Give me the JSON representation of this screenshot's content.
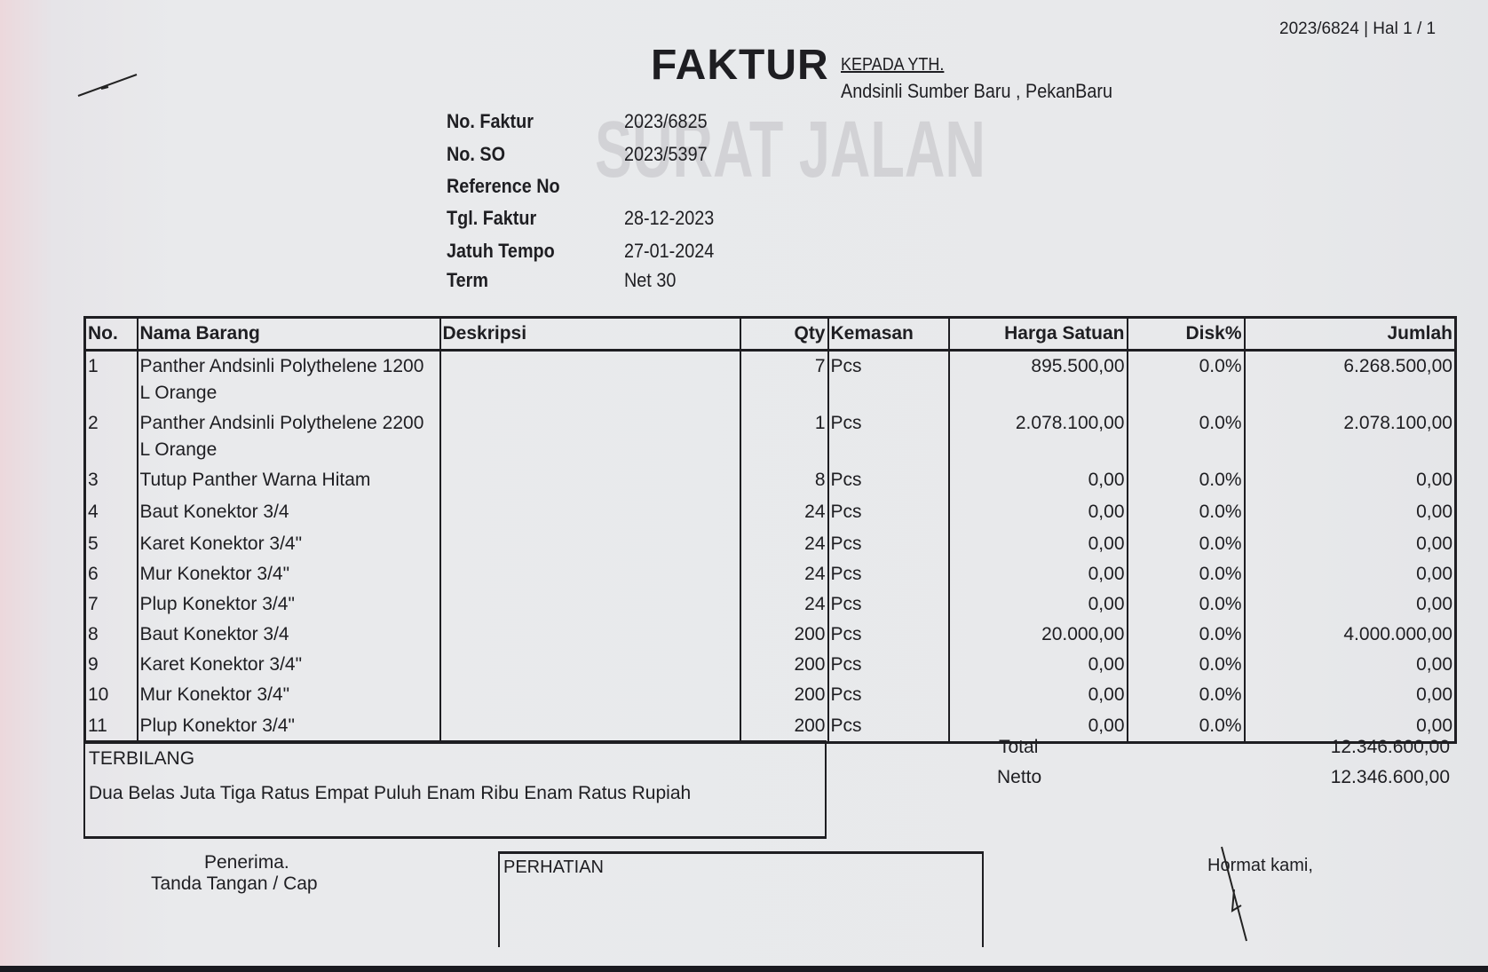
{
  "doc_ref": "2023/6824 | Hal 1 / 1",
  "title": "FAKTUR",
  "recipient": {
    "label": "KEPADA YTH.",
    "name": "Andsinli Sumber Baru , PekanBaru"
  },
  "bleed_through": {
    "title": "SURAT JALAN"
  },
  "fields": [
    {
      "label": "No. Faktur",
      "value": "2023/6825"
    },
    {
      "label": "No. SO",
      "value": "2023/5397"
    },
    {
      "label": "Reference No",
      "value": ""
    },
    {
      "label": "Tgl. Faktur",
      "value": "28-12-2023"
    },
    {
      "label": "Jatuh Tempo",
      "value": "27-01-2024"
    },
    {
      "label": "Term",
      "value": "Net 30"
    }
  ],
  "table": {
    "headers": [
      "No.",
      "Nama Barang",
      "Deskripsi",
      "Qty",
      "Kemasan",
      "Harga Satuan",
      "Disk%",
      "Jumlah"
    ],
    "rows": [
      {
        "no": "1",
        "name": "Panther Andsinli Polythelene 1200 L Orange",
        "desc": "",
        "qty": "7",
        "unit": "Pcs",
        "price": "895.500,00",
        "disc": "0.0%",
        "total": "6.268.500,00"
      },
      {
        "no": "2",
        "name": "Panther Andsinli Polythelene 2200 L Orange",
        "desc": "",
        "qty": "1",
        "unit": "Pcs",
        "price": "2.078.100,00",
        "disc": "0.0%",
        "total": "2.078.100,00"
      },
      {
        "no": "3",
        "name": "Tutup Panther Warna Hitam",
        "desc": "",
        "qty": "8",
        "unit": "Pcs",
        "price": "0,00",
        "disc": "0.0%",
        "total": "0,00"
      },
      {
        "no": "4",
        "name": "Baut Konektor 3/4",
        "desc": "",
        "qty": "24",
        "unit": "Pcs",
        "price": "0,00",
        "disc": "0.0%",
        "total": "0,00"
      },
      {
        "no": "5",
        "name": "Karet Konektor 3/4\"",
        "desc": "",
        "qty": "24",
        "unit": "Pcs",
        "price": "0,00",
        "disc": "0.0%",
        "total": "0,00"
      },
      {
        "no": "6",
        "name": "Mur Konektor 3/4\"",
        "desc": "",
        "qty": "24",
        "unit": "Pcs",
        "price": "0,00",
        "disc": "0.0%",
        "total": "0,00"
      },
      {
        "no": "7",
        "name": "Plup Konektor 3/4\"",
        "desc": "",
        "qty": "24",
        "unit": "Pcs",
        "price": "0,00",
        "disc": "0.0%",
        "total": "0,00"
      },
      {
        "no": "8",
        "name": "Baut Konektor 3/4",
        "desc": "",
        "qty": "200",
        "unit": "Pcs",
        "price": "20.000,00",
        "disc": "0.0%",
        "total": "4.000.000,00"
      },
      {
        "no": "9",
        "name": "Karet Konektor 3/4\"",
        "desc": "",
        "qty": "200",
        "unit": "Pcs",
        "price": "0,00",
        "disc": "0.0%",
        "total": "0,00"
      },
      {
        "no": "10",
        "name": "Mur Konektor 3/4\"",
        "desc": "",
        "qty": "200",
        "unit": "Pcs",
        "price": "0,00",
        "disc": "0.0%",
        "total": "0,00"
      },
      {
        "no": "11",
        "name": "Plup Konektor 3/4\"",
        "desc": "",
        "qty": "200",
        "unit": "Pcs",
        "price": "0,00",
        "disc": "0.0%",
        "total": "0,00"
      }
    ]
  },
  "terbilang": {
    "label": "TERBILANG",
    "text": "Dua Belas Juta Tiga Ratus Empat Puluh Enam Ribu Enam Ratus Rupiah"
  },
  "totals": {
    "total_label": "Total",
    "total": "12.346.600,00",
    "netto_label": "Netto",
    "netto": "12.346.600,00"
  },
  "footer": {
    "penerima": "Penerima.",
    "tanda_tangan": "Tanda Tangan / Cap",
    "perhatian": "PERHATIAN",
    "hormat": "Hormat kami,"
  }
}
